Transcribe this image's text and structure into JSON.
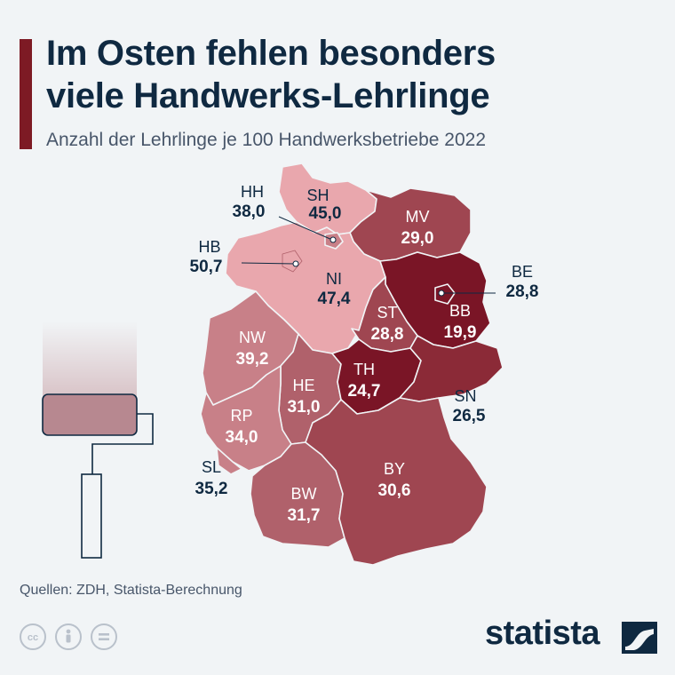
{
  "header": {
    "title_line1": "Im Osten fehlen besonders",
    "title_line2": "viele Handwerks-Lehrlinge",
    "subtitle": "Anzahl der Lehrlinge je 100 Handwerksbetriebe 2022"
  },
  "colors": {
    "accent": "#7d1a24",
    "title": "#0f2941",
    "region_very_dark": "#7a1526",
    "region_dark": "#8b2a37",
    "region_medium_dark": "#9f4651",
    "region_medium": "#b0616b",
    "region_light": "#c88088",
    "region_lightest": "#e9a7ad"
  },
  "chart_data": {
    "type": "choropleth",
    "regions": [
      {
        "code": "SH",
        "value": 45.0,
        "label": "45,0"
      },
      {
        "code": "HH",
        "value": 38.0,
        "label": "38,0"
      },
      {
        "code": "MV",
        "value": 29.0,
        "label": "29,0"
      },
      {
        "code": "HB",
        "value": 50.7,
        "label": "50,7"
      },
      {
        "code": "NI",
        "value": 47.4,
        "label": "47,4"
      },
      {
        "code": "BE",
        "value": 28.8,
        "label": "28,8"
      },
      {
        "code": "BB",
        "value": 19.9,
        "label": "19,9"
      },
      {
        "code": "ST",
        "value": 28.8,
        "label": "28,8"
      },
      {
        "code": "NW",
        "value": 39.2,
        "label": "39,2"
      },
      {
        "code": "TH",
        "value": 24.7,
        "label": "24,7"
      },
      {
        "code": "HE",
        "value": 31.0,
        "label": "31,0"
      },
      {
        "code": "SN",
        "value": 26.5,
        "label": "26,5"
      },
      {
        "code": "RP",
        "value": 34.0,
        "label": "34,0"
      },
      {
        "code": "SL",
        "value": 35.2,
        "label": "35,2"
      },
      {
        "code": "BY",
        "value": 30.6,
        "label": "30,6"
      },
      {
        "code": "BW",
        "value": 31.7,
        "label": "31,7"
      }
    ]
  },
  "footer": {
    "source": "Quellen: ZDH, Statista-Berechnung",
    "logo_text": "statista",
    "license_icons": [
      "cc-icon",
      "by-person-icon",
      "nd-equals-icon"
    ]
  }
}
